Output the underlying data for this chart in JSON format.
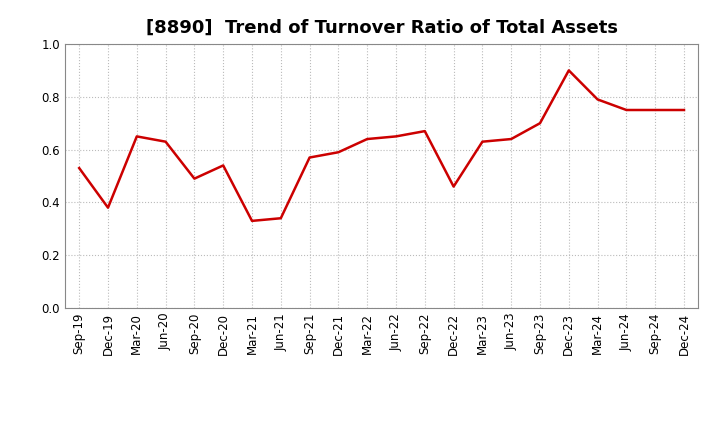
{
  "title": "[8890]  Trend of Turnover Ratio of Total Assets",
  "x_labels": [
    "Sep-19",
    "Dec-19",
    "Mar-20",
    "Jun-20",
    "Sep-20",
    "Dec-20",
    "Mar-21",
    "Jun-21",
    "Sep-21",
    "Dec-21",
    "Mar-22",
    "Jun-22",
    "Sep-22",
    "Dec-22",
    "Mar-23",
    "Jun-23",
    "Sep-23",
    "Dec-23",
    "Mar-24",
    "Jun-24",
    "Sep-24",
    "Dec-24"
  ],
  "y_values": [
    0.53,
    0.38,
    0.65,
    0.63,
    0.49,
    0.54,
    0.33,
    0.34,
    0.57,
    0.59,
    0.64,
    0.65,
    0.67,
    0.46,
    0.63,
    0.64,
    0.7,
    0.9,
    0.79,
    0.75,
    0.75,
    0.75
  ],
  "line_color": "#cc0000",
  "line_width": 1.8,
  "ylim": [
    0.0,
    1.0
  ],
  "yticks": [
    0.0,
    0.2,
    0.4,
    0.6,
    0.8,
    1.0
  ],
  "background_color": "#ffffff",
  "grid_color": "#bbbbbb",
  "title_fontsize": 13,
  "tick_fontsize": 8.5,
  "figure_width": 7.2,
  "figure_height": 4.4,
  "dpi": 100
}
